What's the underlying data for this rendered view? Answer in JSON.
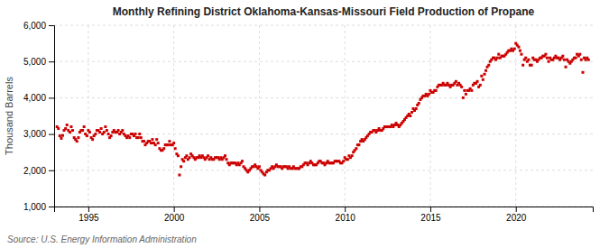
{
  "chart_data": {
    "type": "scatter",
    "title": "Monthly Refining District Oklahoma-Kansas-Missouri Field Production of Propane",
    "ylabel": "Thousand Barrels",
    "source": "Source: U.S. Energy Information Administration",
    "color": "#cc0000",
    "marker": "square",
    "grid": true,
    "xlim": [
      1993.0,
      2024.5
    ],
    "xticks": [
      1995,
      2000,
      2005,
      2010,
      2015,
      2020
    ],
    "ylim": [
      1000,
      6000
    ],
    "yticks": [
      {
        "value": 1000,
        "label": "1,000"
      },
      {
        "value": 2000,
        "label": "2,000"
      },
      {
        "value": 3000,
        "label": "3,000"
      },
      {
        "value": 4000,
        "label": "4,000"
      },
      {
        "value": 5000,
        "label": "5,000"
      },
      {
        "value": 6000,
        "label": "6,000"
      }
    ],
    "x": [
      1993.17,
      1993.25,
      1993.33,
      1993.42,
      1993.5,
      1993.58,
      1993.67,
      1993.75,
      1993.83,
      1993.92,
      1994.0,
      1994.08,
      1994.17,
      1994.25,
      1994.33,
      1994.42,
      1994.5,
      1994.58,
      1994.67,
      1994.75,
      1994.83,
      1994.92,
      1995.0,
      1995.08,
      1995.17,
      1995.25,
      1995.33,
      1995.42,
      1995.5,
      1995.58,
      1995.67,
      1995.75,
      1995.83,
      1995.92,
      1996.0,
      1996.08,
      1996.17,
      1996.25,
      1996.33,
      1996.42,
      1996.5,
      1996.58,
      1996.67,
      1996.75,
      1996.83,
      1996.92,
      1997.0,
      1997.08,
      1997.17,
      1997.25,
      1997.33,
      1997.42,
      1997.5,
      1997.58,
      1997.67,
      1997.75,
      1997.83,
      1997.92,
      1998.0,
      1998.08,
      1998.17,
      1998.25,
      1998.33,
      1998.42,
      1998.5,
      1998.58,
      1998.67,
      1998.75,
      1998.83,
      1998.92,
      1999.0,
      1999.08,
      1999.17,
      1999.25,
      1999.33,
      1999.42,
      1999.5,
      1999.58,
      1999.67,
      1999.75,
      1999.83,
      1999.92,
      2000.0,
      2000.08,
      2000.17,
      2000.25,
      2000.33,
      2000.42,
      2000.5,
      2000.58,
      2000.67,
      2000.75,
      2000.83,
      2000.92,
      2001.0,
      2001.08,
      2001.17,
      2001.25,
      2001.33,
      2001.42,
      2001.5,
      2001.58,
      2001.67,
      2001.75,
      2001.83,
      2001.92,
      2002.0,
      2002.08,
      2002.17,
      2002.25,
      2002.33,
      2002.42,
      2002.5,
      2002.58,
      2002.67,
      2002.75,
      2002.83,
      2002.92,
      2003.0,
      2003.08,
      2003.17,
      2003.25,
      2003.33,
      2003.42,
      2003.5,
      2003.58,
      2003.67,
      2003.75,
      2003.83,
      2003.92,
      2004.0,
      2004.08,
      2004.17,
      2004.25,
      2004.33,
      2004.42,
      2004.5,
      2004.58,
      2004.67,
      2004.75,
      2004.83,
      2004.92,
      2005.0,
      2005.08,
      2005.17,
      2005.25,
      2005.33,
      2005.42,
      2005.5,
      2005.58,
      2005.67,
      2005.75,
      2005.83,
      2005.92,
      2006.0,
      2006.08,
      2006.17,
      2006.25,
      2006.33,
      2006.42,
      2006.5,
      2006.58,
      2006.67,
      2006.75,
      2006.83,
      2006.92,
      2007.0,
      2007.08,
      2007.17,
      2007.25,
      2007.33,
      2007.42,
      2007.5,
      2007.58,
      2007.67,
      2007.75,
      2007.83,
      2007.92,
      2008.0,
      2008.08,
      2008.17,
      2008.25,
      2008.33,
      2008.42,
      2008.5,
      2008.58,
      2008.67,
      2008.75,
      2008.83,
      2008.92,
      2009.0,
      2009.08,
      2009.17,
      2009.25,
      2009.33,
      2009.42,
      2009.5,
      2009.58,
      2009.67,
      2009.75,
      2009.83,
      2009.92,
      2010.0,
      2010.08,
      2010.17,
      2010.25,
      2010.33,
      2010.42,
      2010.5,
      2010.58,
      2010.67,
      2010.75,
      2010.83,
      2010.92,
      2011.0,
      2011.08,
      2011.17,
      2011.25,
      2011.33,
      2011.42,
      2011.5,
      2011.58,
      2011.67,
      2011.75,
      2011.83,
      2011.92,
      2012.0,
      2012.08,
      2012.17,
      2012.25,
      2012.33,
      2012.42,
      2012.5,
      2012.58,
      2012.67,
      2012.75,
      2012.83,
      2012.92,
      2013.0,
      2013.08,
      2013.17,
      2013.25,
      2013.33,
      2013.42,
      2013.5,
      2013.58,
      2013.67,
      2013.75,
      2013.83,
      2013.92,
      2014.0,
      2014.08,
      2014.17,
      2014.25,
      2014.33,
      2014.42,
      2014.5,
      2014.58,
      2014.67,
      2014.75,
      2014.83,
      2014.92,
      2015.0,
      2015.08,
      2015.17,
      2015.25,
      2015.33,
      2015.42,
      2015.5,
      2015.58,
      2015.67,
      2015.75,
      2015.83,
      2015.92,
      2016.0,
      2016.08,
      2016.17,
      2016.25,
      2016.33,
      2016.42,
      2016.5,
      2016.58,
      2016.67,
      2016.75,
      2016.83,
      2016.92,
      2017.0,
      2017.08,
      2017.17,
      2017.25,
      2017.33,
      2017.42,
      2017.5,
      2017.58,
      2017.67,
      2017.75,
      2017.83,
      2017.92,
      2018.0,
      2018.08,
      2018.17,
      2018.25,
      2018.33,
      2018.42,
      2018.5,
      2018.58,
      2018.67,
      2018.75,
      2018.83,
      2018.92,
      2019.0,
      2019.08,
      2019.17,
      2019.25,
      2019.33,
      2019.42,
      2019.5,
      2019.58,
      2019.67,
      2019.75,
      2019.83,
      2019.92,
      2020.0,
      2020.08,
      2020.17,
      2020.25,
      2020.33,
      2020.42,
      2020.5,
      2020.58,
      2020.67,
      2020.75,
      2020.83,
      2020.92,
      2021.0,
      2021.08,
      2021.17,
      2021.25,
      2021.33,
      2021.42,
      2021.5,
      2021.58,
      2021.67,
      2021.75,
      2021.83,
      2021.92,
      2022.0,
      2022.08,
      2022.17,
      2022.25,
      2022.33,
      2022.42,
      2022.5,
      2022.58,
      2022.67,
      2022.75,
      2022.83,
      2022.92,
      2023.0,
      2023.08,
      2023.17,
      2023.25,
      2023.33,
      2023.42,
      2023.5,
      2023.58,
      2023.67,
      2023.75,
      2023.83,
      2023.92,
      2024.0,
      2024.08,
      2024.17,
      2024.25
    ],
    "values": [
      3200,
      3150,
      2950,
      2880,
      2960,
      3100,
      3150,
      3250,
      3100,
      3050,
      3200,
      3100,
      2900,
      2850,
      2800,
      2900,
      3050,
      3100,
      3100,
      3200,
      3000,
      2950,
      3100,
      3050,
      2900,
      2850,
      2950,
      3000,
      3100,
      3100,
      3050,
      3150,
      3000,
      3050,
      3200,
      3100,
      3000,
      2900,
      2950,
      3050,
      3100,
      3050,
      3050,
      3100,
      3000,
      3050,
      3100,
      3000,
      2950,
      2900,
      2950,
      2900,
      3000,
      3000,
      2950,
      3000,
      2900,
      2900,
      3000,
      2900,
      2800,
      2800,
      2700,
      2750,
      2800,
      2800,
      2750,
      2850,
      2750,
      2700,
      2850,
      2750,
      2600,
      2550,
      2550,
      2600,
      2700,
      2700,
      2700,
      2800,
      2700,
      2700,
      2750,
      2600,
      2450,
      2400,
      1870,
      2100,
      2300,
      2250,
      2350,
      2400,
      2300,
      2350,
      2450,
      2400,
      2350,
      2300,
      2350,
      2350,
      2400,
      2350,
      2400,
      2350,
      2300,
      2350,
      2400,
      2300,
      2350,
      2300,
      2300,
      2350,
      2350,
      2350,
      2300,
      2350,
      2300,
      2350,
      2400,
      2300,
      2200,
      2150,
      2200,
      2200,
      2200,
      2200,
      2150,
      2200,
      2150,
      2200,
      2250,
      2100,
      2050,
      2000,
      1950,
      2000,
      2050,
      2100,
      2100,
      2150,
      2100,
      2050,
      2100,
      2000,
      1950,
      1900,
      1870,
      1950,
      2000,
      2000,
      2050,
      2100,
      2050,
      2100,
      2150,
      2100,
      2100,
      2100,
      2050,
      2100,
      2100,
      2100,
      2050,
      2100,
      2050,
      2050,
      2100,
      2050,
      2050,
      2050,
      2050,
      2100,
      2100,
      2150,
      2200,
      2200,
      2150,
      2200,
      2250,
      2200,
      2150,
      2150,
      2150,
      2200,
      2250,
      2250,
      2200,
      2200,
      2150,
      2200,
      2250,
      2200,
      2200,
      2200,
      2200,
      2250,
      2250,
      2250,
      2250,
      2200,
      2200,
      2250,
      2350,
      2300,
      2300,
      2400,
      2350,
      2400,
      2500,
      2550,
      2600,
      2700,
      2700,
      2800,
      2850,
      2800,
      2850,
      2900,
      2950,
      3000,
      3050,
      3050,
      3100,
      3100,
      3050,
      3100,
      3150,
      3100,
      3100,
      3150,
      3200,
      3200,
      3200,
      3200,
      3200,
      3250,
      3200,
      3250,
      3300,
      3250,
      3200,
      3250,
      3300,
      3350,
      3400,
      3450,
      3500,
      3550,
      3500,
      3600,
      3700,
      3650,
      3700,
      3800,
      3850,
      3950,
      4000,
      4050,
      4050,
      4100,
      4050,
      4100,
      4200,
      4150,
      4150,
      4200,
      4200,
      4300,
      4350,
      4350,
      4350,
      4400,
      4350,
      4350,
      4400,
      4350,
      4300,
      4350,
      4350,
      4400,
      4450,
      4350,
      4400,
      4350,
      4300,
      4000,
      4200,
      4100,
      4200,
      4200,
      4250,
      4200,
      4350,
      4400,
      4400,
      4450,
      4300,
      4350,
      4600,
      4500,
      4650,
      4750,
      4850,
      4900,
      5000,
      5050,
      5100,
      5100,
      5050,
      5100,
      5200,
      5100,
      5150,
      5150,
      5150,
      5200,
      5250,
      5300,
      5300,
      5350,
      5300,
      5350,
      5500,
      5450,
      5400,
      5300,
      5200,
      4900,
      5050,
      5100,
      5000,
      5050,
      4900,
      4900,
      5100,
      5050,
      5050,
      5000,
      5050,
      5100,
      5100,
      5150,
      5150,
      5200,
      5100,
      5000,
      5100,
      5050,
      5050,
      5100,
      5150,
      5100,
      5100,
      5050,
      5100,
      5150,
      5050,
      4850,
      5050,
      5000,
      4950,
      5000,
      5050,
      5100,
      5100,
      5200,
      5150,
      5200,
      5050,
      4700,
      5100,
      5050,
      5100,
      5050
    ]
  }
}
